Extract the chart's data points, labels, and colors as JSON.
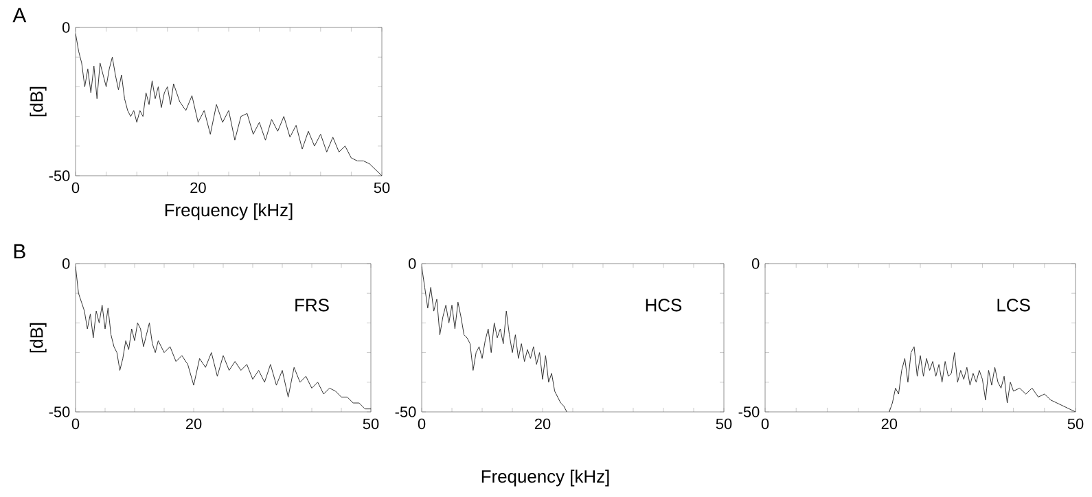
{
  "chart_data": [
    {
      "type": "line",
      "title": "A",
      "xlabel": "Frequency [kHz]",
      "ylabel": "[dB]",
      "color": "#333333",
      "x": [
        0,
        0.5,
        1,
        1.5,
        2,
        2.5,
        3,
        3.5,
        4,
        4.5,
        5,
        5.5,
        6,
        6.5,
        7,
        7.5,
        8,
        8.5,
        9,
        9.5,
        10,
        10.5,
        11,
        11.5,
        12,
        12.5,
        13,
        13.5,
        14,
        14.5,
        15,
        15.5,
        16,
        17,
        18,
        19,
        20,
        21,
        22,
        23,
        24,
        25,
        26,
        27,
        28,
        29,
        30,
        31,
        32,
        33,
        34,
        35,
        36,
        37,
        38,
        39,
        40,
        41,
        42,
        43,
        44,
        45,
        46,
        47,
        48,
        49,
        50
      ],
      "values": [
        -2,
        -8,
        -12,
        -20,
        -14,
        -22,
        -13,
        -24,
        -12,
        -16,
        -20,
        -14,
        -10,
        -16,
        -21,
        -16,
        -24,
        -28,
        -30,
        -28,
        -32,
        -28,
        -30,
        -22,
        -26,
        -18,
        -24,
        -20,
        -27,
        -22,
        -20,
        -26,
        -19,
        -25,
        -28,
        -23,
        -32,
        -28,
        -36,
        -26,
        -32,
        -28,
        -38,
        -30,
        -29,
        -36,
        -32,
        -38,
        -31,
        -35,
        -30,
        -37,
        -33,
        -41,
        -35,
        -40,
        -36,
        -42,
        -37,
        -42,
        -40,
        -44,
        -45,
        -45,
        -46,
        -48,
        -50
      ],
      "xlim": [
        0,
        50
      ],
      "ylim": [
        -50,
        0
      ],
      "xticks": [
        0,
        {
          "value": 5,
          "label": null
        },
        {
          "value": 10,
          "label": null
        },
        {
          "value": 15,
          "label": null
        },
        20,
        {
          "value": 25,
          "label": null
        },
        {
          "value": 30,
          "label": null
        },
        {
          "value": 35,
          "label": null
        },
        {
          "value": 40,
          "label": null
        },
        {
          "value": 45,
          "label": null
        },
        50
      ],
      "yticks": [
        -50,
        {
          "value": -40,
          "label": null
        },
        {
          "value": -30,
          "label": null
        },
        {
          "value": -20,
          "label": null
        },
        {
          "value": -10,
          "label": null
        },
        0
      ]
    },
    {
      "type": "line",
      "title": "B",
      "ylabel": "[dB]",
      "color": "#333333",
      "annotations": [
        "FRS"
      ],
      "x": [
        0,
        0.5,
        1,
        1.5,
        2,
        2.5,
        3,
        3.5,
        4,
        4.5,
        5,
        5.5,
        6,
        6.5,
        7,
        7.5,
        8,
        8.5,
        9,
        9.5,
        10,
        10.5,
        11,
        11.5,
        12,
        12.5,
        13,
        13.5,
        14,
        15,
        16,
        17,
        18,
        19,
        20,
        21,
        22,
        23,
        24,
        25,
        26,
        27,
        28,
        29,
        30,
        31,
        32,
        33,
        34,
        35,
        36,
        37,
        38,
        39,
        40,
        41,
        42,
        43,
        44,
        45,
        46,
        47,
        48,
        49,
        50
      ],
      "values": [
        -1,
        -10,
        -13,
        -16,
        -22,
        -17,
        -25,
        -16,
        -20,
        -14,
        -22,
        -15,
        -24,
        -28,
        -30,
        -36,
        -32,
        -26,
        -29,
        -22,
        -26,
        -20,
        -22,
        -28,
        -24,
        -20,
        -27,
        -30,
        -26,
        -30,
        -28,
        -33,
        -31,
        -34,
        -41,
        -32,
        -35,
        -30,
        -38,
        -31,
        -36,
        -33,
        -36,
        -34,
        -39,
        -36,
        -40,
        -34,
        -41,
        -36,
        -45,
        -35,
        -40,
        -38,
        -42,
        -40,
        -44,
        -42,
        -43,
        -45,
        -45,
        -47,
        -47,
        -49,
        -49
      ],
      "xlim": [
        0,
        50
      ],
      "ylim": [
        -50,
        0
      ],
      "xticks": [
        0,
        {
          "value": 5,
          "label": null
        },
        {
          "value": 10,
          "label": null
        },
        {
          "value": 15,
          "label": null
        },
        20,
        {
          "value": 25,
          "label": null
        },
        {
          "value": 30,
          "label": null
        },
        {
          "value": 35,
          "label": null
        },
        {
          "value": 40,
          "label": null
        },
        {
          "value": 45,
          "label": null
        },
        50
      ],
      "yticks": [
        -50,
        {
          "value": -40,
          "label": null
        },
        {
          "value": -30,
          "label": null
        },
        {
          "value": -20,
          "label": null
        },
        {
          "value": -10,
          "label": null
        },
        0
      ]
    },
    {
      "type": "line",
      "xlabel": "Frequency [kHz]",
      "color": "#333333",
      "annotations": [
        "HCS"
      ],
      "x": [
        0,
        0.5,
        1,
        1.5,
        2,
        2.5,
        3,
        3.5,
        4,
        4.5,
        5,
        5.5,
        6,
        6.5,
        7,
        7.5,
        8,
        8.5,
        9,
        9.5,
        10,
        10.5,
        11,
        11.5,
        12,
        12.5,
        13,
        13.5,
        14,
        14.5,
        15,
        15.5,
        16,
        16.5,
        17,
        17.5,
        18,
        18.5,
        19,
        19.5,
        20,
        20.5,
        21,
        21.5,
        22,
        22.5,
        23,
        23.5,
        24
      ],
      "values": [
        -1,
        -8,
        -15,
        -8,
        -16,
        -12,
        -24,
        -18,
        -14,
        -20,
        -14,
        -22,
        -13,
        -18,
        -24,
        -25,
        -27,
        -36,
        -30,
        -28,
        -32,
        -26,
        -22,
        -30,
        -20,
        -25,
        -22,
        -27,
        -16,
        -24,
        -30,
        -24,
        -32,
        -27,
        -33,
        -29,
        -32,
        -28,
        -34,
        -30,
        -39,
        -31,
        -40,
        -37,
        -43,
        -45,
        -47,
        -48,
        -50
      ],
      "xlim": [
        0,
        50
      ],
      "ylim": [
        -50,
        0
      ],
      "xticks": [
        0,
        {
          "value": 5,
          "label": null
        },
        {
          "value": 10,
          "label": null
        },
        {
          "value": 15,
          "label": null
        },
        20,
        {
          "value": 25,
          "label": null
        },
        {
          "value": 30,
          "label": null
        },
        {
          "value": 35,
          "label": null
        },
        {
          "value": 40,
          "label": null
        },
        {
          "value": 45,
          "label": null
        },
        50
      ],
      "yticks": [
        -50,
        {
          "value": -40,
          "label": null
        },
        {
          "value": -30,
          "label": null
        },
        {
          "value": -20,
          "label": null
        },
        {
          "value": -10,
          "label": null
        },
        0
      ]
    },
    {
      "type": "line",
      "color": "#333333",
      "annotations": [
        "LCS"
      ],
      "x": [
        20,
        20.5,
        21,
        21.5,
        22,
        22.5,
        23,
        23.5,
        24,
        24.5,
        25,
        25.5,
        26,
        26.5,
        27,
        27.5,
        28,
        28.5,
        29,
        29.5,
        30,
        30.5,
        31,
        31.5,
        32,
        32.5,
        33,
        33.5,
        34,
        34.5,
        35,
        35.5,
        36,
        36.5,
        37,
        37.5,
        38,
        38.5,
        39,
        39.5,
        40,
        41,
        42,
        43,
        44,
        45,
        46,
        47,
        48,
        49,
        50
      ],
      "values": [
        -50,
        -47,
        -42,
        -44,
        -36,
        -32,
        -40,
        -30,
        -28,
        -38,
        -31,
        -38,
        -32,
        -36,
        -33,
        -38,
        -34,
        -40,
        -33,
        -38,
        -37,
        -30,
        -40,
        -36,
        -39,
        -35,
        -41,
        -37,
        -40,
        -36,
        -39,
        -46,
        -36,
        -41,
        -35,
        -40,
        -42,
        -38,
        -47,
        -40,
        -43,
        -42,
        -44,
        -42,
        -45,
        -44,
        -46,
        -47,
        -48,
        -49,
        -50
      ],
      "xlim": [
        0,
        50
      ],
      "ylim": [
        -50,
        0
      ],
      "xticks": [
        0,
        {
          "value": 5,
          "label": null
        },
        {
          "value": 10,
          "label": null
        },
        {
          "value": 15,
          "label": null
        },
        20,
        {
          "value": 25,
          "label": null
        },
        {
          "value": 30,
          "label": null
        },
        {
          "value": 35,
          "label": null
        },
        {
          "value": 40,
          "label": null
        },
        {
          "value": 45,
          "label": null
        },
        50
      ],
      "yticks": [
        -50,
        {
          "value": -40,
          "label": null
        },
        {
          "value": -30,
          "label": null
        },
        {
          "value": -20,
          "label": null
        },
        {
          "value": -10,
          "label": null
        },
        0
      ]
    }
  ]
}
